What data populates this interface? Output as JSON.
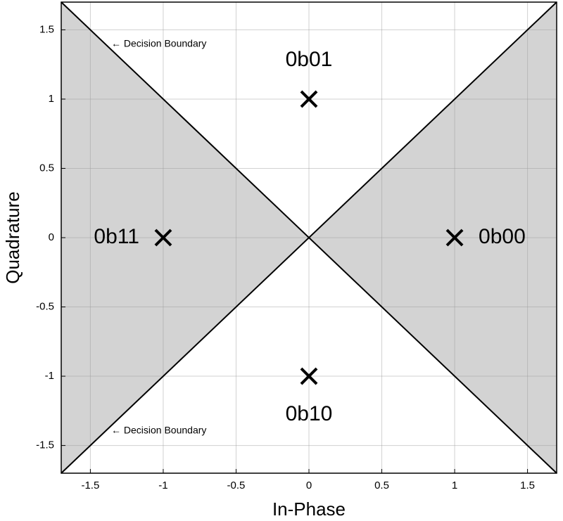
{
  "chart_data": {
    "type": "scatter",
    "xlabel": "In-Phase",
    "ylabel": "Quadrature",
    "x": [
      1,
      0,
      -1,
      0
    ],
    "y": [
      0,
      1,
      0,
      -1
    ],
    "point_labels": [
      "0b00",
      "0b01",
      "0b11",
      "0b10"
    ],
    "annotations": [
      "← Decision Boundary",
      "← Decision Boundary"
    ],
    "xlim": [
      -1.7,
      1.7
    ],
    "ylim": [
      -1.7,
      1.7
    ],
    "xticks": [
      -1.5,
      -1,
      -0.5,
      0,
      0.5,
      1,
      1.5
    ],
    "yticks": [
      -1.5,
      -1,
      -0.5,
      0,
      0.5,
      1,
      1.5
    ],
    "grid": true,
    "color": "#000000",
    "region_color": "#d3d3d3"
  }
}
